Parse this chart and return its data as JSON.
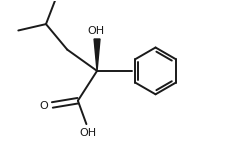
{
  "background": "#ffffff",
  "line_color": "#1a1a1a",
  "text_color": "#1a1a1a",
  "bond_lw": 1.4,
  "figsize": [
    2.26,
    1.41
  ],
  "dpi": 100,
  "xlim": [
    -1.0,
    8.5
  ],
  "ylim": [
    -1.0,
    5.5
  ],
  "font_size": 7.5
}
